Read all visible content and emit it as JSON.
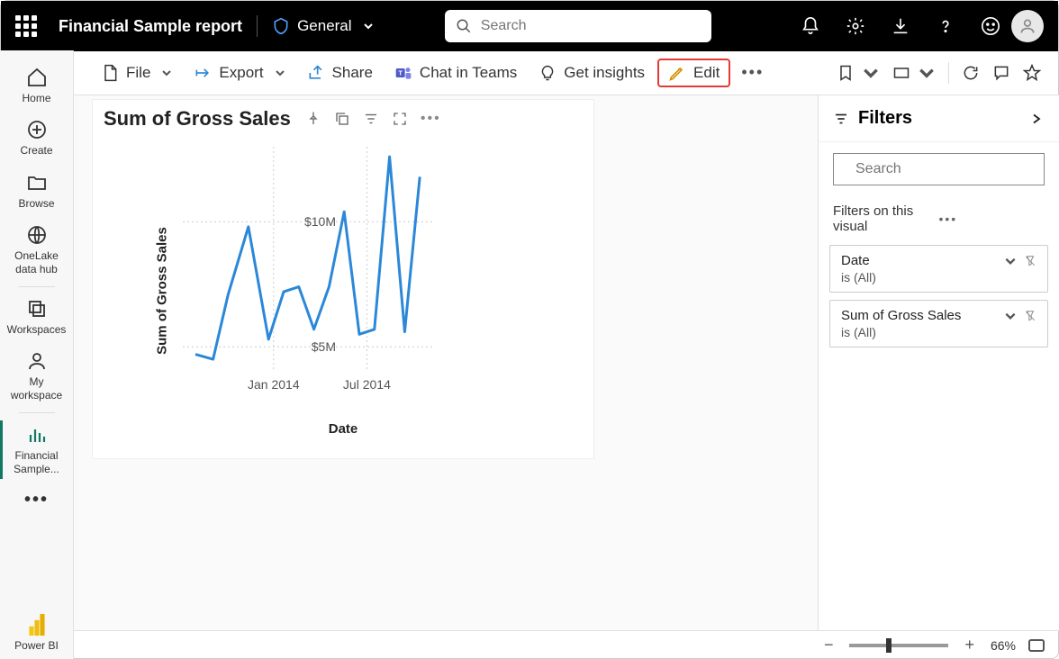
{
  "topbar": {
    "report_title": "Financial Sample report",
    "sensitivity_label": "General",
    "search_placeholder": "Search"
  },
  "leftnav": {
    "home": "Home",
    "create": "Create",
    "browse": "Browse",
    "onelake": "OneLake data hub",
    "workspaces": "Workspaces",
    "myworkspace": "My workspace",
    "active_report": "Financial Sample...",
    "powerbi": "Power BI"
  },
  "commandbar": {
    "file": "File",
    "export": "Export",
    "share": "Share",
    "chat_teams": "Chat in Teams",
    "get_insights": "Get insights",
    "edit": "Edit"
  },
  "visual": {
    "title": "Sum of Gross Sales",
    "y_axis_title": "Sum of Gross Sales",
    "x_axis_title": "Date",
    "chart": {
      "type": "line",
      "line_color": "#2b88d8",
      "line_width": 3,
      "background_color": "#ffffff",
      "grid_color": "#cccccc",
      "ylim": [
        4,
        13
      ],
      "yticks": [
        {
          "v": 5,
          "label": "$5M"
        },
        {
          "v": 10,
          "label": "$10M"
        }
      ],
      "xticks": [
        {
          "x": 0.36,
          "label": "Jan 2014"
        },
        {
          "x": 0.73,
          "label": "Jul 2014"
        }
      ],
      "points": [
        {
          "x": 0.05,
          "y": 4.7
        },
        {
          "x": 0.12,
          "y": 4.5
        },
        {
          "x": 0.18,
          "y": 7.1
        },
        {
          "x": 0.26,
          "y": 9.8
        },
        {
          "x": 0.34,
          "y": 5.3
        },
        {
          "x": 0.4,
          "y": 7.2
        },
        {
          "x": 0.46,
          "y": 7.4
        },
        {
          "x": 0.52,
          "y": 5.7
        },
        {
          "x": 0.58,
          "y": 7.4
        },
        {
          "x": 0.64,
          "y": 10.4
        },
        {
          "x": 0.7,
          "y": 5.5
        },
        {
          "x": 0.76,
          "y": 5.7
        },
        {
          "x": 0.82,
          "y": 12.6
        },
        {
          "x": 0.88,
          "y": 5.6
        },
        {
          "x": 0.94,
          "y": 11.8
        }
      ]
    }
  },
  "filters": {
    "title": "Filters",
    "search_placeholder": "Search",
    "section": "Filters on this visual",
    "cards": [
      {
        "name": "Date",
        "value": "is (All)"
      },
      {
        "name": "Sum of Gross Sales",
        "value": "is (All)"
      }
    ]
  },
  "statusbar": {
    "zoom_pct": "66%",
    "slider_pos": 0.4
  }
}
